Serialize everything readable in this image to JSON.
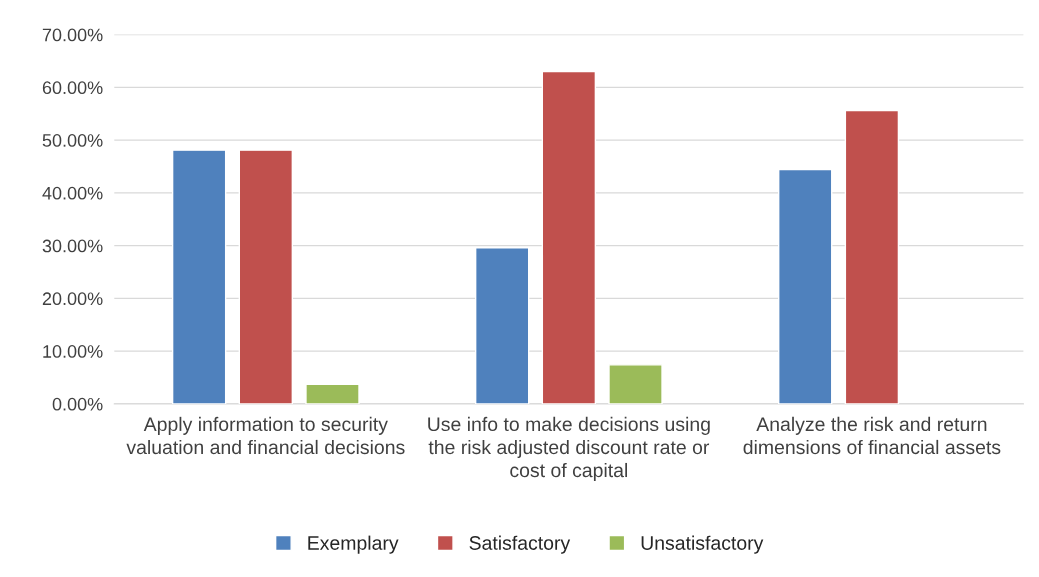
{
  "chart_data": {
    "type": "bar",
    "categories": [
      "Apply information to security valuation and financial decisions",
      "Use info to make decisions using the risk adjusted discount rate or cost of capital",
      "Analyze the risk and return dimensions of financial assets"
    ],
    "series": [
      {
        "name": "Exemplary",
        "color": "#4f81bd",
        "values": [
          48.1,
          29.6,
          44.4
        ]
      },
      {
        "name": "Satisfactory",
        "color": "#c0504d",
        "values": [
          48.1,
          63.0,
          55.6
        ]
      },
      {
        "name": "Unsatisfactory",
        "color": "#9bbb59",
        "values": [
          3.7,
          7.4,
          null
        ]
      }
    ],
    "ylim": [
      0,
      70
    ],
    "yticks": [
      {
        "value": 0,
        "label": "0.00%"
      },
      {
        "value": 10,
        "label": "10.00%"
      },
      {
        "value": 20,
        "label": "20.00%"
      },
      {
        "value": 30,
        "label": "30.00%"
      },
      {
        "value": 40,
        "label": "40.00%"
      },
      {
        "value": 50,
        "label": "50.00%"
      },
      {
        "value": 60,
        "label": "60.00%"
      },
      {
        "value": 70,
        "label": "70.00%"
      }
    ],
    "grid": "y",
    "legend": "bottom"
  }
}
